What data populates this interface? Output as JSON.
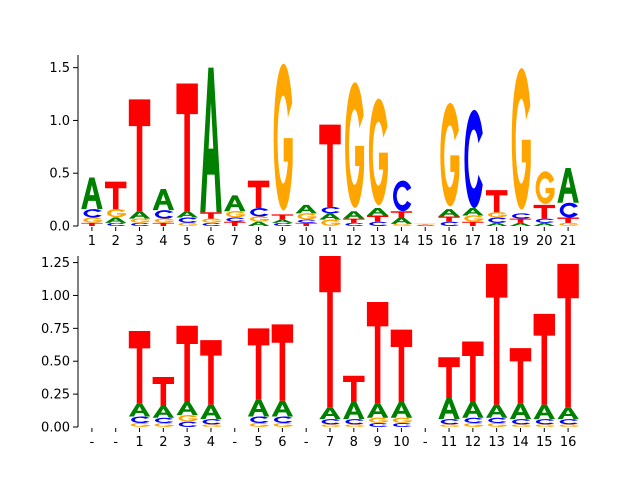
{
  "colors": {
    "A": "#008000",
    "C": "#0000ff",
    "G": "#ffa500",
    "T": "#ff0000"
  },
  "chart_data": [
    {
      "type": "sequence-logo",
      "title": "",
      "xlabel": "",
      "ylabel": "",
      "ylim": [
        0,
        1.62
      ],
      "yticks": [
        "0.0",
        "0.5",
        "1.0",
        "1.5"
      ],
      "ytick_values": [
        0,
        0.5,
        1.0,
        1.5
      ],
      "positions": [
        "1",
        "2",
        "3",
        "4",
        "5",
        "6",
        "7",
        "8",
        "9",
        "10",
        "11",
        "12",
        "13",
        "14",
        "15",
        "16",
        "17",
        "18",
        "19",
        "20",
        "21"
      ],
      "stacks": [
        {
          "T": 0.03,
          "G": 0.05,
          "C": 0.08,
          "A": 0.3
        },
        {
          "C": 0.03,
          "A": 0.05,
          "G": 0.08,
          "T": 0.26
        },
        {
          "C": 0.03,
          "G": 0.04,
          "A": 0.07,
          "T": 1.06
        },
        {
          "T": 0.03,
          "G": 0.04,
          "C": 0.08,
          "A": 0.2
        },
        {
          "G": 0.03,
          "C": 0.05,
          "A": 0.06,
          "T": 1.21
        },
        {
          "C": 0.03,
          "G": 0.04,
          "T": 0.06,
          "A": 1.37
        },
        {
          "T": 0.04,
          "C": 0.04,
          "G": 0.06,
          "A": 0.15
        },
        {
          "A": 0.04,
          "G": 0.05,
          "C": 0.08,
          "T": 0.26
        },
        {
          "C": 0.03,
          "A": 0.03,
          "T": 0.05,
          "G": 1.39
        },
        {
          "T": 0.03,
          "C": 0.03,
          "G": 0.06,
          "A": 0.08
        },
        {
          "G": 0.06,
          "A": 0.06,
          "C": 0.06,
          "T": 0.78
        },
        {
          "C": 0.03,
          "T": 0.04,
          "A": 0.07,
          "G": 1.19
        },
        {
          "C": 0.04,
          "T": 0.06,
          "A": 0.07,
          "G": 1.01
        },
        {
          "G": 0.02,
          "A": 0.06,
          "T": 0.06,
          "C": 0.29
        },
        {
          "A": 0.005,
          "C": 0.005,
          "G": 0.005,
          "T": 0.005
        },
        {
          "C": 0.04,
          "T": 0.05,
          "A": 0.07,
          "G": 0.98
        },
        {
          "T": 0.04,
          "G": 0.06,
          "A": 0.07,
          "C": 0.93
        },
        {
          "A": 0.03,
          "C": 0.05,
          "G": 0.05,
          "T": 0.21
        },
        {
          "A": 0.03,
          "T": 0.04,
          "C": 0.05,
          "G": 1.34
        },
        {
          "A": 0.03,
          "C": 0.04,
          "T": 0.13,
          "G": 0.31
        },
        {
          "G": 0.03,
          "T": 0.05,
          "C": 0.14,
          "A": 0.33
        }
      ]
    },
    {
      "type": "sequence-logo",
      "title": "",
      "xlabel": "",
      "ylabel": "",
      "ylim": [
        0,
        1.3
      ],
      "yticks": [
        "0.00",
        "0.25",
        "0.50",
        "0.75",
        "1.00",
        "1.25"
      ],
      "ytick_values": [
        0,
        0.25,
        0.5,
        0.75,
        1.0,
        1.25
      ],
      "positions": [
        "-",
        "-",
        "1",
        "2",
        "3",
        "4",
        "-",
        "5",
        "6",
        "-",
        "7",
        "8",
        "9",
        "10",
        "-",
        "11",
        "12",
        "13",
        "14",
        "15",
        "16"
      ],
      "stacks": [
        {},
        {},
        {
          "G": 0.03,
          "C": 0.05,
          "A": 0.1,
          "T": 0.55
        },
        {
          "G": 0.03,
          "C": 0.04,
          "A": 0.09,
          "T": 0.22
        },
        {
          "C": 0.04,
          "G": 0.05,
          "A": 0.1,
          "T": 0.58
        },
        {
          "G": 0.02,
          "C": 0.04,
          "A": 0.11,
          "T": 0.49
        },
        {},
        {
          "G": 0.03,
          "C": 0.05,
          "A": 0.13,
          "T": 0.54
        },
        {
          "G": 0.03,
          "C": 0.05,
          "A": 0.12,
          "T": 0.58
        },
        {},
        {
          "G": 0.02,
          "C": 0.04,
          "A": 0.09,
          "T": 1.15
        },
        {
          "G": 0.02,
          "C": 0.04,
          "A": 0.13,
          "T": 0.2
        },
        {
          "C": 0.03,
          "G": 0.04,
          "A": 0.11,
          "T": 0.77
        },
        {
          "C": 0.03,
          "G": 0.04,
          "A": 0.12,
          "T": 0.55
        },
        {},
        {
          "G": 0.02,
          "C": 0.04,
          "A": 0.16,
          "T": 0.31
        },
        {
          "G": 0.03,
          "C": 0.04,
          "A": 0.12,
          "T": 0.46
        },
        {
          "G": 0.03,
          "C": 0.04,
          "A": 0.1,
          "T": 1.07
        },
        {
          "G": 0.02,
          "C": 0.04,
          "A": 0.12,
          "T": 0.42
        },
        {
          "G": 0.02,
          "C": 0.04,
          "A": 0.11,
          "T": 0.69
        },
        {
          "G": 0.02,
          "C": 0.04,
          "A": 0.09,
          "T": 1.09
        }
      ]
    }
  ]
}
